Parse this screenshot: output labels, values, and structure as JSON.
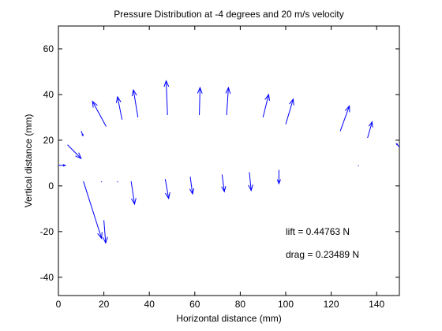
{
  "chart_data": {
    "type": "quiver",
    "title": "Pressure Distribution at -4 degrees and 20 m/s velocity",
    "xlabel": "Horizontal distance (mm)",
    "ylabel": "Vertical distance (mm)",
    "xlim": [
      0,
      150
    ],
    "ylim": [
      -48,
      70
    ],
    "xticks": [
      0,
      20,
      40,
      60,
      80,
      100,
      120,
      140
    ],
    "yticks": [
      -40,
      -20,
      0,
      20,
      40,
      60
    ],
    "grid": false,
    "arrow_color": "#0000ff",
    "vectors": [
      {
        "x": 0,
        "y": 9,
        "u": 3,
        "v": 0
      },
      {
        "x": 4,
        "y": 18,
        "u": 6,
        "v": -6
      },
      {
        "x": 10,
        "y": 24,
        "u": 0.8,
        "v": -2
      },
      {
        "x": 21,
        "y": 26,
        "u": -6,
        "v": 11
      },
      {
        "x": 28,
        "y": 29,
        "u": -2,
        "v": 10
      },
      {
        "x": 35,
        "y": 30,
        "u": -2,
        "v": 12
      },
      {
        "x": 48,
        "y": 31,
        "u": -0.6,
        "v": 15
      },
      {
        "x": 62,
        "y": 31,
        "u": 0.3,
        "v": 12
      },
      {
        "x": 74,
        "y": 31,
        "u": 0.8,
        "v": 12
      },
      {
        "x": 90,
        "y": 30,
        "u": 2.5,
        "v": 10
      },
      {
        "x": 100,
        "y": 27,
        "u": 3.3,
        "v": 11
      },
      {
        "x": 124,
        "y": 24,
        "u": 4,
        "v": 11
      },
      {
        "x": 136,
        "y": 21,
        "u": 2,
        "v": 7
      },
      {
        "x": 150,
        "y": 17,
        "u": -1.3,
        "v": 1.5
      },
      {
        "x": 11,
        "y": 2,
        "u": 8,
        "v": -25
      },
      {
        "x": 20,
        "y": -15,
        "u": 0.8,
        "v": -10
      },
      {
        "x": 19,
        "y": 2,
        "u": 0,
        "v": -0.4
      },
      {
        "x": 26,
        "y": 2,
        "u": 0,
        "v": -0.4
      },
      {
        "x": 32,
        "y": 2,
        "u": 1.5,
        "v": -10
      },
      {
        "x": 47,
        "y": 3,
        "u": 1.5,
        "v": -8.5
      },
      {
        "x": 58,
        "y": 4,
        "u": 1,
        "v": -7.5
      },
      {
        "x": 72,
        "y": 5,
        "u": 1,
        "v": -7.5
      },
      {
        "x": 84,
        "y": 6,
        "u": 0.8,
        "v": -8
      },
      {
        "x": 97,
        "y": 7,
        "u": 0,
        "v": -6
      },
      {
        "x": 132,
        "y": 9,
        "u": 0,
        "v": -0.4
      }
    ],
    "annotations": [
      {
        "text": "lift = 0.44763 N",
        "x": 100,
        "y": -20
      },
      {
        "text": "drag = 0.23489 N",
        "x": 100,
        "y": -30
      }
    ]
  }
}
